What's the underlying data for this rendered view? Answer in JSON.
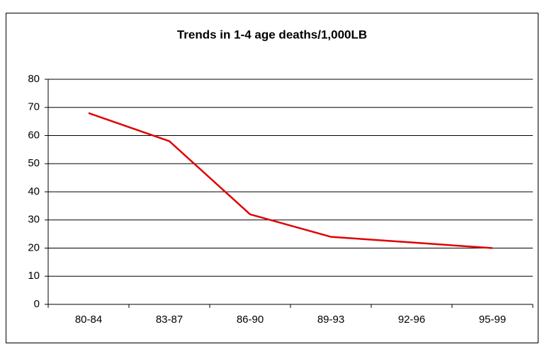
{
  "chart_data": {
    "type": "line",
    "title": "Trends in 1-4 age deaths/1,000LB",
    "categories": [
      "80-84",
      "83-87",
      "86-90",
      "89-93",
      "92-96",
      "95-99"
    ],
    "series": [
      {
        "name": "1-4 age deaths/1,000LB",
        "color": "#e00000",
        "values": [
          68,
          58,
          32,
          24,
          22,
          20
        ]
      }
    ],
    "ylim": [
      0,
      80
    ],
    "yticks": [
      0,
      10,
      20,
      30,
      40,
      50,
      60,
      70,
      80
    ],
    "grid": true
  }
}
